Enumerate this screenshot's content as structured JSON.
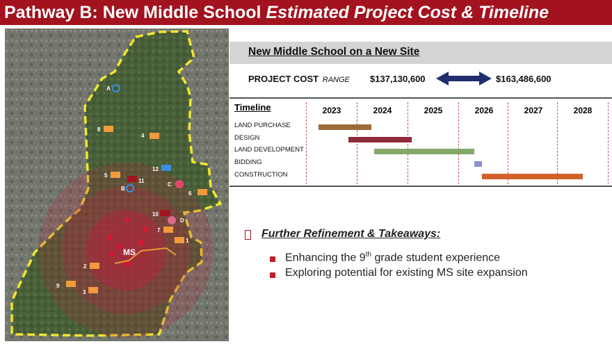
{
  "title": {
    "lead": "Pathway B:  New Middle School ",
    "italic": "Estimated Project Cost & Timeline"
  },
  "map": {
    "school_labels": [
      "A",
      "B",
      "C",
      "D",
      "1",
      "2",
      "3",
      "4",
      "5",
      "6",
      "7",
      "8",
      "9",
      "10",
      "11",
      "12"
    ],
    "ms_label": "MS",
    "colors": {
      "boundary": "#f2e530",
      "circle": "#b4233c",
      "school_icon": "#f29a3c"
    }
  },
  "header": {
    "title": "New Middle School on a New Site"
  },
  "cost": {
    "label": "PROJECT COST",
    "range_label": "RANGE",
    "low": "$137,130,600",
    "high": "$163,486,600",
    "arrow_color": "#1f2f6e"
  },
  "timeline": {
    "heading": "Timeline",
    "years": [
      "2023",
      "2024",
      "2025",
      "2026",
      "2027",
      "2028"
    ],
    "tasks": [
      {
        "name": "LAND PURCHASE",
        "start": 2023.25,
        "end": 2024.3,
        "color": "#9c6a3a"
      },
      {
        "name": "DESIGN",
        "start": 2023.85,
        "end": 2025.1,
        "color": "#8e2a3a"
      },
      {
        "name": "LAND DEVELOPMENT",
        "start": 2024.35,
        "end": 2026.35,
        "color": "#84a86a"
      },
      {
        "name": "BIDDING",
        "start": 2026.35,
        "end": 2026.5,
        "color": "#8e8ed4"
      },
      {
        "name": "CONSTRUCTION",
        "start": 2026.5,
        "end": 2028.5,
        "color": "#d0622a"
      }
    ]
  },
  "takeaways": {
    "title": "Further Refinement & Takeaways:",
    "item1_pre": "Enhancing the 9",
    "item1_sup": "th",
    "item1_post": " grade student experience",
    "item2": "Exploring potential for existing MS site expansion"
  }
}
